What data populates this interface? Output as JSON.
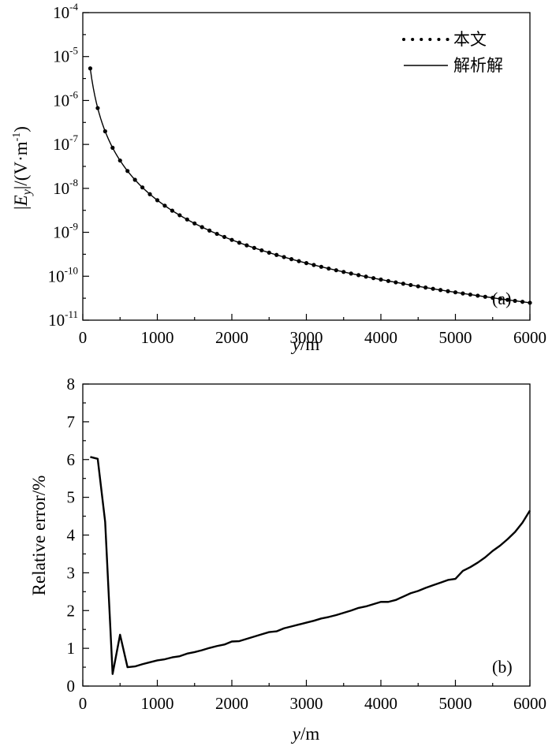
{
  "chart_data": [
    {
      "type": "line",
      "panel_label": "(a)",
      "yscale": "log",
      "xlim": [
        0,
        6000
      ],
      "ylim_exp": [
        -11,
        -4
      ],
      "x_ticks": [
        0,
        1000,
        2000,
        3000,
        4000,
        5000,
        6000
      ],
      "x_tick_labels": [
        "0",
        "1000",
        "2000",
        "3000",
        "4000",
        "5000",
        "6000"
      ],
      "y_tick_exps": [
        -11,
        -10,
        -9,
        -8,
        -7,
        -6,
        -5,
        -4
      ],
      "y_tick_base": "10",
      "y_tick_exp_labels": [
        "-11",
        "-10",
        "-9",
        "-8",
        "-7",
        "-6",
        "-5",
        "-4"
      ],
      "xlabel": {
        "var": "y",
        "unit": "/m"
      },
      "ylabel": {
        "open": "|",
        "var": "E",
        "sub": "y",
        "mid": "|/(V·m",
        "sup": "-1",
        "close": ")"
      },
      "legend": [
        {
          "label": "本文",
          "style": "dotted"
        },
        {
          "label": "解析解",
          "style": "solid"
        }
      ],
      "curve": {
        "x_start": 100,
        "x_end": 6000,
        "x_step": 100,
        "log10_amplitude": 0.17,
        "power_exponent": 3.0
      },
      "markers": {
        "x_start": 100,
        "x_end": 6000,
        "x_step": 100
      }
    },
    {
      "type": "line",
      "panel_label": "(b)",
      "xlim": [
        0,
        6000
      ],
      "ylim": [
        0,
        8
      ],
      "x_ticks": [
        0,
        1000,
        2000,
        3000,
        4000,
        5000,
        6000
      ],
      "x_tick_labels": [
        "0",
        "1000",
        "2000",
        "3000",
        "4000",
        "5000",
        "6000"
      ],
      "y_ticks": [
        0,
        1,
        2,
        3,
        4,
        5,
        6,
        7,
        8
      ],
      "y_tick_labels": [
        "0",
        "1",
        "2",
        "3",
        "4",
        "5",
        "6",
        "7",
        "8"
      ],
      "xlabel": {
        "var": "y",
        "unit": "/m"
      },
      "ylabel": "Relative error/%",
      "series": [
        {
          "name": "Relative error",
          "x": [
            100,
            200,
            300,
            400,
            500,
            600,
            700,
            800,
            900,
            1000,
            1100,
            1200,
            1300,
            1400,
            1500,
            1600,
            1700,
            1800,
            1900,
            2000,
            2100,
            2200,
            2300,
            2400,
            2500,
            2600,
            2700,
            2800,
            2900,
            3000,
            3100,
            3200,
            3300,
            3400,
            3500,
            3600,
            3700,
            3800,
            3900,
            4000,
            4100,
            4200,
            4300,
            4400,
            4500,
            4600,
            4700,
            4800,
            4900,
            5000,
            5100,
            5200,
            5300,
            5400,
            5500,
            5600,
            5700,
            5800,
            5900,
            6000
          ],
          "y": [
            6.07,
            6.02,
            4.35,
            0.32,
            1.36,
            0.5,
            0.52,
            0.58,
            0.63,
            0.68,
            0.71,
            0.76,
            0.79,
            0.86,
            0.9,
            0.95,
            1.01,
            1.06,
            1.1,
            1.18,
            1.19,
            1.25,
            1.31,
            1.37,
            1.43,
            1.45,
            1.53,
            1.58,
            1.63,
            1.68,
            1.73,
            1.79,
            1.83,
            1.88,
            1.94,
            2.0,
            2.07,
            2.11,
            2.17,
            2.23,
            2.23,
            2.28,
            2.37,
            2.46,
            2.52,
            2.6,
            2.67,
            2.74,
            2.81,
            2.84,
            3.05,
            3.15,
            3.27,
            3.41,
            3.58,
            3.72,
            3.89,
            4.08,
            4.33,
            4.65
          ]
        }
      ]
    }
  ]
}
